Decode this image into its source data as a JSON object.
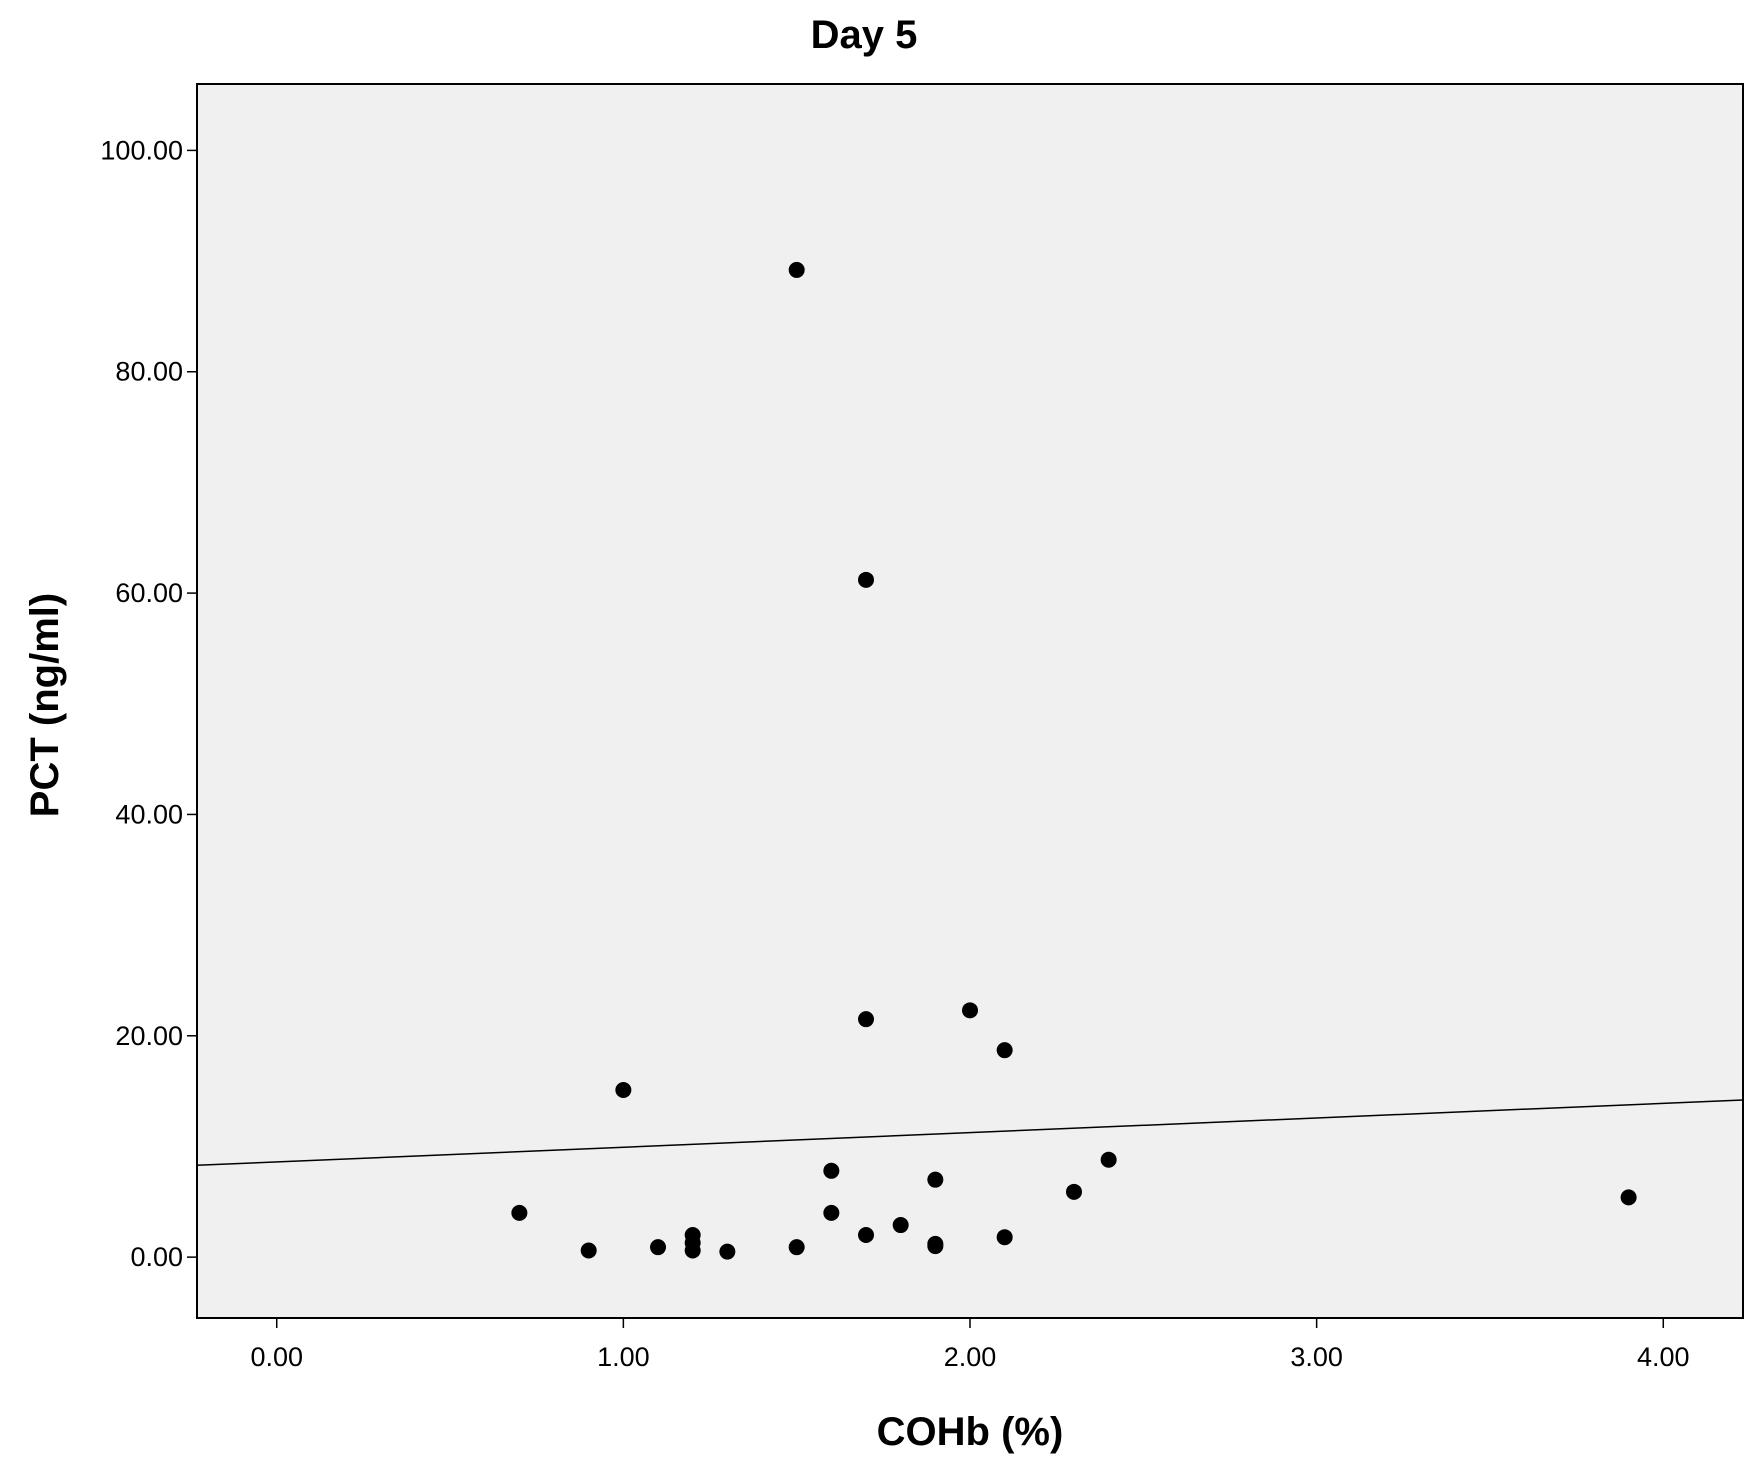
{
  "chart_data": {
    "type": "scatter",
    "title": "Day 5",
    "xlabel": "COHb (%)",
    "ylabel": "PCT (ng/ml)",
    "xlim": [
      -0.23,
      4.23
    ],
    "ylim": [
      -5.5,
      106
    ],
    "x_ticks": [
      0,
      1,
      2,
      3,
      4
    ],
    "x_tick_labels": [
      "0.00",
      "1.00",
      "2.00",
      "3.00",
      "4.00"
    ],
    "y_ticks": [
      0,
      20,
      40,
      60,
      80,
      100
    ],
    "y_tick_labels": [
      "0.00",
      "20.00",
      "40.00",
      "60.00",
      "80.00",
      "100.00"
    ],
    "grid": false,
    "background_color": "#f0f0f0",
    "marker_color": "#000000",
    "fit_line": {
      "x": [
        -0.23,
        4.23
      ],
      "y": [
        8.3,
        14.2
      ]
    },
    "points": [
      {
        "x": 0.7,
        "y": 4.0
      },
      {
        "x": 0.9,
        "y": 0.6
      },
      {
        "x": 1.0,
        "y": 15.1
      },
      {
        "x": 1.1,
        "y": 0.9
      },
      {
        "x": 1.2,
        "y": 2.0
      },
      {
        "x": 1.2,
        "y": 1.3
      },
      {
        "x": 1.2,
        "y": 0.6
      },
      {
        "x": 1.3,
        "y": 0.5
      },
      {
        "x": 1.5,
        "y": 89.2
      },
      {
        "x": 1.5,
        "y": 0.9
      },
      {
        "x": 1.6,
        "y": 7.8
      },
      {
        "x": 1.6,
        "y": 4.0
      },
      {
        "x": 1.7,
        "y": 61.2
      },
      {
        "x": 1.7,
        "y": 21.5
      },
      {
        "x": 1.7,
        "y": 2.0
      },
      {
        "x": 1.8,
        "y": 2.9
      },
      {
        "x": 1.9,
        "y": 7.0
      },
      {
        "x": 1.9,
        "y": 1.2
      },
      {
        "x": 1.9,
        "y": 1.0
      },
      {
        "x": 2.0,
        "y": 22.3
      },
      {
        "x": 2.1,
        "y": 18.7
      },
      {
        "x": 2.1,
        "y": 1.8
      },
      {
        "x": 2.3,
        "y": 5.9
      },
      {
        "x": 2.4,
        "y": 8.8
      },
      {
        "x": 3.9,
        "y": 5.4
      }
    ]
  }
}
